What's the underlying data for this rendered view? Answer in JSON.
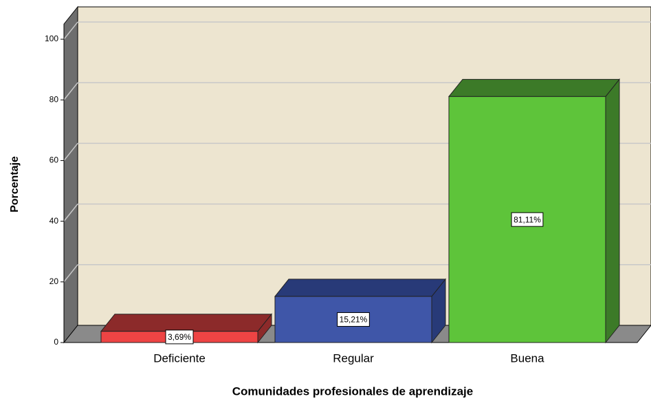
{
  "chart_data": {
    "type": "bar3d",
    "xlabel": "Comunidades profesionales de aprendizaje",
    "ylabel": "Porcentaje",
    "categories": [
      "Deficiente",
      "Regular",
      "Buena"
    ],
    "values": [
      3.69,
      15.21,
      81.11
    ],
    "value_labels": [
      "3,69%",
      "15,21%",
      "81,11%"
    ],
    "colors": [
      "#ee4444",
      "#3f56a8",
      "#5ec43a"
    ],
    "top_colors": [
      "#8c2a2a",
      "#283a78",
      "#3c7a28"
    ],
    "ylim": [
      0,
      105
    ],
    "yticks": [
      0,
      20,
      40,
      60,
      80,
      100
    ],
    "grid": true
  }
}
